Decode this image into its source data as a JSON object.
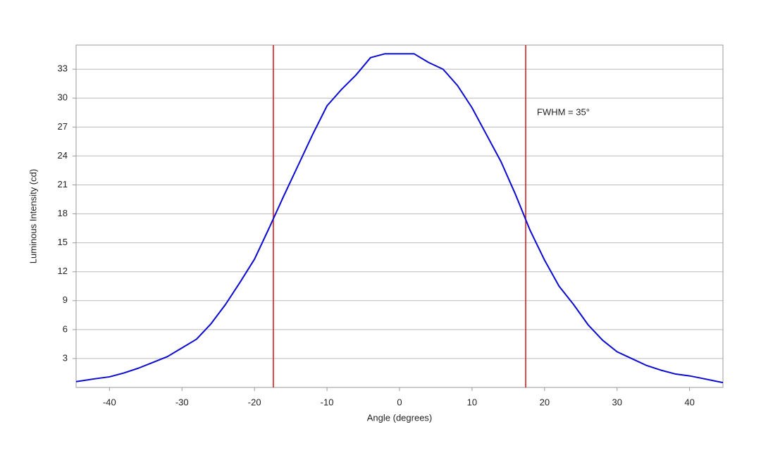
{
  "chart_data": {
    "type": "line",
    "x_label": "Angle (degrees)",
    "y_label": "Luminous Intensity (cd)",
    "annotation": "FWHM = 35°",
    "x": [
      -44.6,
      -42,
      -40,
      -38,
      -36,
      -34,
      -32,
      -30,
      -28,
      -26,
      -24,
      -22,
      -20,
      -18,
      -16,
      -14,
      -12,
      -10,
      -8,
      -6,
      -4,
      -2,
      0,
      2,
      4,
      6,
      8,
      10,
      12,
      14,
      16,
      18,
      20,
      22,
      24,
      26,
      28,
      30,
      32,
      34,
      36,
      38,
      40,
      42,
      44.6
    ],
    "series": [
      {
        "color": "#0a0ad2",
        "values": [
          0.6,
          0.9,
          1.1,
          1.5,
          2.0,
          2.6,
          3.2,
          4.1,
          5.0,
          6.6,
          8.6,
          10.9,
          13.3,
          16.5,
          19.8,
          23.0,
          26.2,
          29.2,
          30.9,
          32.4,
          34.2,
          34.6,
          34.6,
          34.6,
          33.7,
          33.0,
          31.3,
          29.0,
          26.2,
          23.4,
          20.0,
          16.3,
          13.2,
          10.5,
          8.6,
          6.5,
          4.9,
          3.7,
          3.0,
          2.3,
          1.8,
          1.4,
          1.2,
          0.9,
          0.5
        ]
      }
    ],
    "vlines": [
      -17.4,
      17.4
    ],
    "vline_color": "#d01010",
    "xlim": [
      -44.6,
      44.6
    ],
    "xticks": [
      -40,
      -30,
      -20,
      -10,
      0,
      10,
      20,
      30,
      40
    ],
    "ylim": [
      0,
      35.5
    ],
    "yticks": [
      3,
      6,
      9,
      12,
      15,
      18,
      21,
      24,
      27,
      30,
      33
    ],
    "grid": true
  }
}
